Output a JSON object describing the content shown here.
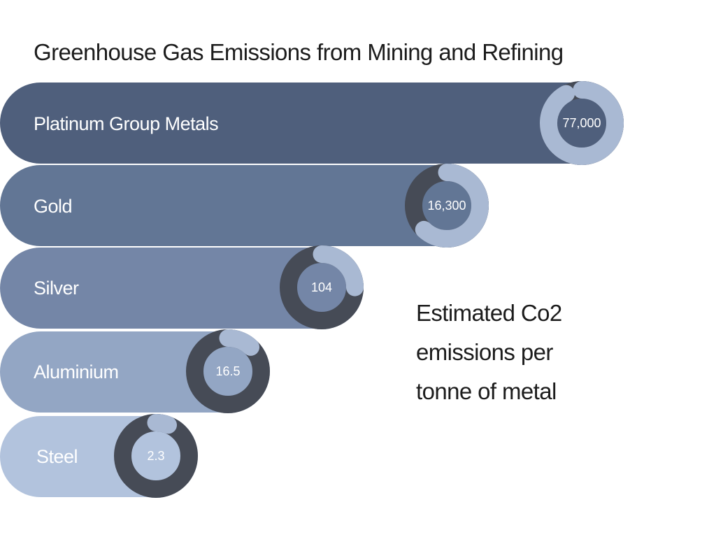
{
  "chart_data": {
    "type": "bar",
    "title": "Greenhouse Gas Emissions from Mining and Refining",
    "annotation": "Estimated Co2 emissions per tonne of metal",
    "categories": [
      "Platinum Group Metals",
      "Gold",
      "Silver",
      "Aluminium",
      "Steel"
    ],
    "values": [
      77000,
      16300,
      104,
      16.5,
      2.3
    ],
    "value_labels": [
      "77,000",
      "16,300",
      "104",
      "16.5",
      "2.3"
    ],
    "bar_colors": [
      "#4f5f7c",
      "#627695",
      "#7486a7",
      "#93a6c4",
      "#b2c3dd"
    ],
    "ring_fractions": [
      0.92,
      0.62,
      0.25,
      0.12,
      0.06
    ],
    "ring_colors": {
      "track": "#464b56",
      "progress": "#a9b9d3"
    }
  }
}
